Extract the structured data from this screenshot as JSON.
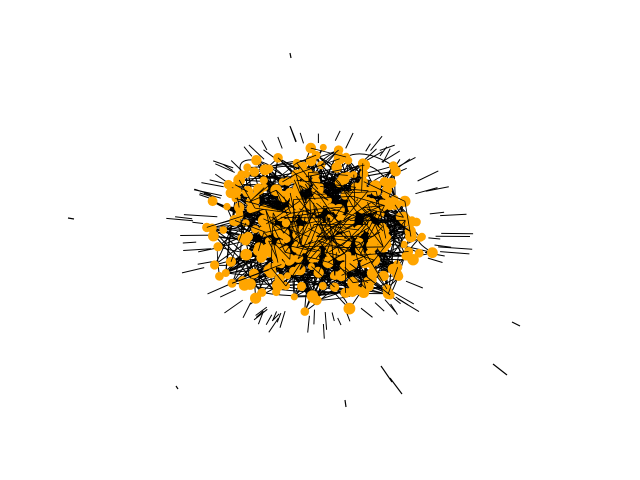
{
  "graph": {
    "node_color": "#FFA500",
    "edge_color": "#000000",
    "background": "#FFFFFF"
  }
}
